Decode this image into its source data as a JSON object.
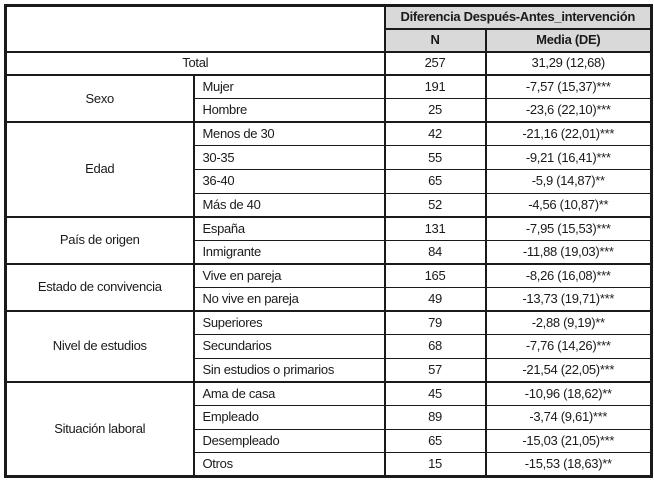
{
  "table": {
    "header": {
      "group_title": "Diferencia Después-Antes_intervención",
      "col_n": "N",
      "col_media": "Media (DE)"
    },
    "total_row": {
      "label": "Total",
      "n": "257",
      "media": "31,29 (12,68)"
    },
    "groups": [
      {
        "category": "Sexo",
        "rows": [
          {
            "label": "Mujer",
            "n": "191",
            "media": "-7,57 (15,37)***"
          },
          {
            "label": "Hombre",
            "n": "25",
            "media": "-23,6 (22,10)***"
          }
        ]
      },
      {
        "category": "Edad",
        "rows": [
          {
            "label": "Menos de 30",
            "n": "42",
            "media": "-21,16 (22,01)***"
          },
          {
            "label": "30-35",
            "n": "55",
            "media": "-9,21 (16,41)***"
          },
          {
            "label": "36-40",
            "n": "65",
            "media": "-5,9 (14,87)**"
          },
          {
            "label": "Más de 40",
            "n": "52",
            "media": "-4,56 (10,87)**"
          }
        ]
      },
      {
        "category": "País de origen",
        "rows": [
          {
            "label": "España",
            "n": "131",
            "media": "-7,95 (15,53)***"
          },
          {
            "label": "Inmigrante",
            "n": "84",
            "media": "-11,88 (19,03)***"
          }
        ]
      },
      {
        "category": "Estado de convivencia",
        "rows": [
          {
            "label": "Vive en pareja",
            "n": "165",
            "media": "-8,26 (16,08)***"
          },
          {
            "label": "No vive en pareja",
            "n": "49",
            "media": "-13,73 (19,71)***"
          }
        ]
      },
      {
        "category": "Nivel de estudios",
        "rows": [
          {
            "label": "Superiores",
            "n": "79",
            "media": "-2,88 (9,19)**"
          },
          {
            "label": "Secundarios",
            "n": "68",
            "media": "-7,76 (14,26)***"
          },
          {
            "label": "Sin estudios o primarios",
            "n": "57",
            "media": "-21,54 (22,05)***"
          }
        ]
      },
      {
        "category": "Situación laboral",
        "rows": [
          {
            "label": "Ama de casa",
            "n": "45",
            "media": "-10,96 (18,62)**"
          },
          {
            "label": "Empleado",
            "n": "89",
            "media": "-3,74 (9,61)***"
          },
          {
            "label": "Desempleado",
            "n": "65",
            "media": "-15,03 (21,05)***"
          },
          {
            "label": "Otros",
            "n": "15",
            "media": "-15,53 (18,63)**"
          }
        ]
      }
    ],
    "colors": {
      "header_bg": "#d9d9d9",
      "border": "#1a1a1a",
      "text": "#1a1a1a"
    }
  }
}
